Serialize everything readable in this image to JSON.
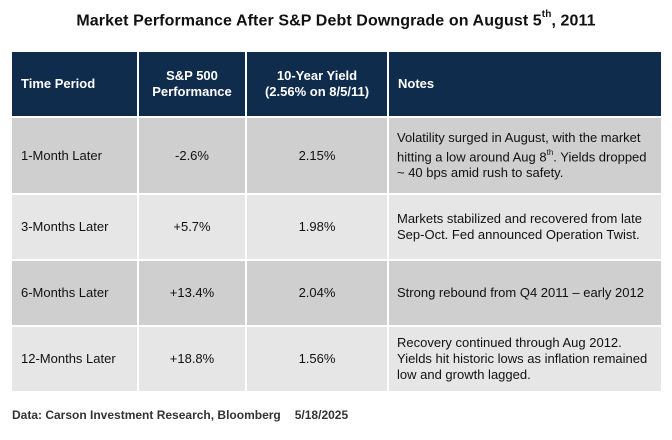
{
  "title": {
    "main": "Market Performance After S&P Debt Downgrade on August 5",
    "sup": "th",
    "tail": ", 2011"
  },
  "table": {
    "headers": {
      "period": "Time Period",
      "sp500_line1": "S&P 500",
      "sp500_line2": "Performance",
      "yield_line1": "10-Year Yield",
      "yield_line2": "(2.56% on 8/5/11)",
      "notes": "Notes"
    },
    "rows": [
      {
        "period": "1-Month Later",
        "sp500": "-2.6%",
        "yield": "2.15%",
        "notes_a": "Volatility surged in August, with the market hitting a low around Aug 8",
        "notes_sup": "th",
        "notes_b": ". Yields dropped ~ 40 bps amid rush to safety."
      },
      {
        "period": "3-Months Later",
        "sp500": "+5.7%",
        "yield": "1.98%",
        "notes_a": "Markets stabilized and recovered from late Sep-Oct. Fed announced Operation Twist."
      },
      {
        "period": "6-Months Later",
        "sp500": "+13.4%",
        "yield": "2.04%",
        "notes_a": "Strong rebound from Q4 2011 – early 2012"
      },
      {
        "period": "12-Months Later",
        "sp500": "+18.8%",
        "yield": "1.56%",
        "notes_a": "Recovery continued through Aug 2012. Yields hit historic lows as inflation remained low and growth lagged."
      }
    ]
  },
  "footer": {
    "source": "Data: Carson Investment Research, Bloomberg",
    "date": "5/18/2025"
  },
  "colors": {
    "header_bg": "#0f2c4c",
    "row_dark": "#cfcfcf",
    "row_light": "#e6e6e6"
  }
}
